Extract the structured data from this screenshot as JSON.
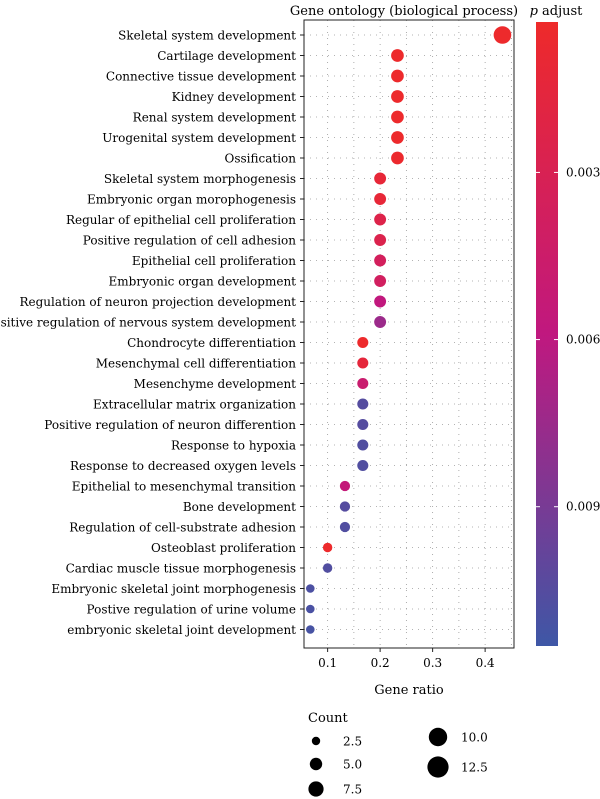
{
  "chart_data": {
    "type": "scatter",
    "title": "Gene ontology (biological process)",
    "xlabel": "Gene ratio",
    "ylabel": "",
    "xlim": [
      0.055,
      0.455
    ],
    "xticks": [
      0.1,
      0.2,
      0.3,
      0.4
    ],
    "xtick_labels": [
      "0.1",
      "0.2",
      "0.3",
      "0.4"
    ],
    "grid": true,
    "color_scale": {
      "title_italic": "p",
      "title_rest": " adjust",
      "ticks": [
        0.003,
        0.006,
        0.009
      ],
      "tick_labels": [
        "0.003",
        "0.006",
        "0.009"
      ],
      "range": [
        0.0003,
        0.0115
      ],
      "low_color": "#ee2a2a",
      "high_color": "#3e57a6"
    },
    "size_legend": {
      "title": "Count",
      "values": [
        2.5,
        5.0,
        7.5,
        10.0,
        12.5
      ],
      "labels": [
        "2.5",
        "5.0",
        "7.5",
        "10.0",
        "12.5"
      ]
    },
    "terms": [
      {
        "label": "Skeletal system development",
        "ratio": 0.433,
        "count": 13,
        "p": 0.0004
      },
      {
        "label": "Cartilage development",
        "ratio": 0.233,
        "count": 7,
        "p": 0.0004
      },
      {
        "label": "Connective tissue development",
        "ratio": 0.233,
        "count": 7,
        "p": 0.0004
      },
      {
        "label": "Kidney development",
        "ratio": 0.233,
        "count": 7,
        "p": 0.0004
      },
      {
        "label": "Renal system development",
        "ratio": 0.233,
        "count": 7,
        "p": 0.0004
      },
      {
        "label": "Urogenital system development",
        "ratio": 0.233,
        "count": 7,
        "p": 0.0004
      },
      {
        "label": "Ossification",
        "ratio": 0.233,
        "count": 7,
        "p": 0.0005
      },
      {
        "label": "Skeletal system morphogenesis",
        "ratio": 0.2,
        "count": 6,
        "p": 0.0012
      },
      {
        "label": "Embryonic organ morophogenesis",
        "ratio": 0.2,
        "count": 6,
        "p": 0.0012
      },
      {
        "label": "Regular of epithelial cell proliferation",
        "ratio": 0.2,
        "count": 6,
        "p": 0.0024
      },
      {
        "label": "Positive regulation of cell adhesion",
        "ratio": 0.2,
        "count": 6,
        "p": 0.0026
      },
      {
        "label": "Epithelial cell proliferation",
        "ratio": 0.2,
        "count": 6,
        "p": 0.0036
      },
      {
        "label": "Embryonic organ development",
        "ratio": 0.2,
        "count": 6,
        "p": 0.0038
      },
      {
        "label": "Regulation of neuron projection development",
        "ratio": 0.2,
        "count": 6,
        "p": 0.0058
      },
      {
        "label": "Positive regulation of nervous system development",
        "ratio": 0.2,
        "count": 6,
        "p": 0.0075
      },
      {
        "label": "Chondrocyte differentiation",
        "ratio": 0.167,
        "count": 5,
        "p": 0.0004
      },
      {
        "label": "Mesenchymal cell differentiation",
        "ratio": 0.167,
        "count": 5,
        "p": 0.0014
      },
      {
        "label": "Mesenchyme development",
        "ratio": 0.167,
        "count": 5,
        "p": 0.0048
      },
      {
        "label": "Extracellular matrix organization",
        "ratio": 0.167,
        "count": 5,
        "p": 0.0105
      },
      {
        "label": "Positive regulation of neuron differention",
        "ratio": 0.167,
        "count": 5,
        "p": 0.0105
      },
      {
        "label": "Response to hypoxia",
        "ratio": 0.167,
        "count": 5,
        "p": 0.0107
      },
      {
        "label": "Response to decreased oxygen levels",
        "ratio": 0.167,
        "count": 5,
        "p": 0.0107
      },
      {
        "label": "Epithelial to mesenchymal transition",
        "ratio": 0.133,
        "count": 4,
        "p": 0.0055
      },
      {
        "label": "Bone development",
        "ratio": 0.133,
        "count": 4,
        "p": 0.0105
      },
      {
        "label": "Regulation of cell-substrate adhesion",
        "ratio": 0.133,
        "count": 4,
        "p": 0.0107
      },
      {
        "label": "Osteoblast proliferation",
        "ratio": 0.1,
        "count": 3,
        "p": 0.0004
      },
      {
        "label": "Cardiac muscle tissue morphogenesis",
        "ratio": 0.1,
        "count": 3,
        "p": 0.0107
      },
      {
        "label": "Embryonic skeletal joint morphogenesis",
        "ratio": 0.067,
        "count": 2,
        "p": 0.0109
      },
      {
        "label": "Postive regulation of urine volume",
        "ratio": 0.067,
        "count": 2,
        "p": 0.011
      },
      {
        "label": "embryonic skeletal joint development",
        "ratio": 0.067,
        "count": 2,
        "p": 0.0111
      }
    ]
  }
}
